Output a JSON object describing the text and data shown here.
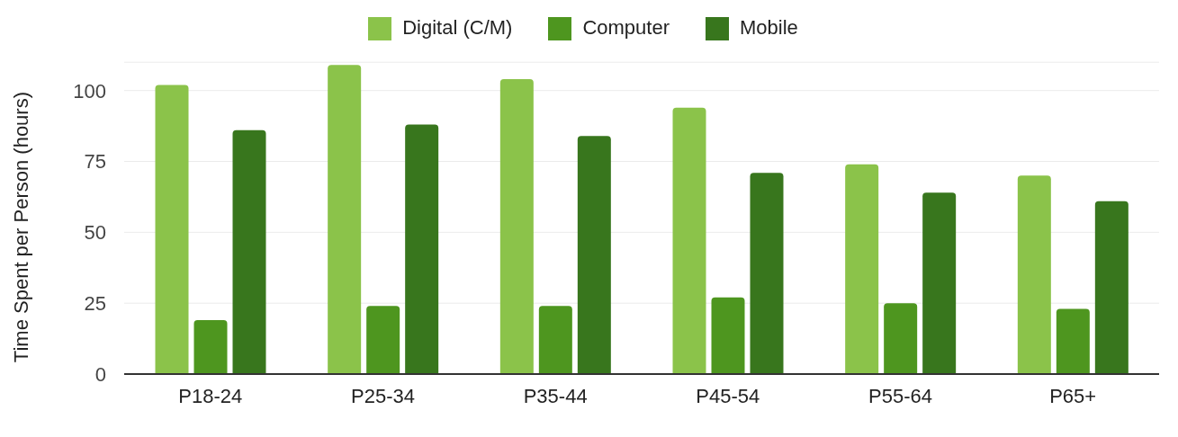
{
  "chart_data": {
    "type": "bar",
    "ylabel": "Time Spent per Person (hours)",
    "categories": [
      "P18-24",
      "P25-34",
      "P35-44",
      "P45-54",
      "P55-64",
      "P65+"
    ],
    "series": [
      {
        "name": "Digital (C/M)",
        "color": "#8bc34a",
        "values": [
          102,
          109,
          104,
          94,
          74,
          70
        ]
      },
      {
        "name": "Computer",
        "color": "#4e961f",
        "values": [
          19,
          24,
          24,
          27,
          25,
          23
        ]
      },
      {
        "name": "Mobile",
        "color": "#38761d",
        "values": [
          86,
          88,
          84,
          71,
          64,
          61
        ]
      }
    ],
    "ylim": [
      0,
      110
    ],
    "yticks": [
      0,
      25,
      50,
      75,
      100
    ],
    "grid": "y",
    "legend": "top"
  }
}
